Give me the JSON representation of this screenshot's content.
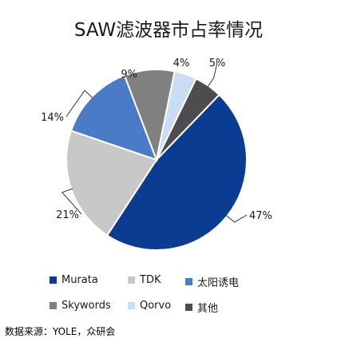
{
  "chart_data": {
    "type": "pie",
    "title": "SAW滤波器市占率情况",
    "slices": [
      {
        "label": "Murata",
        "value": 47,
        "value_label": "47%",
        "color": "#0a3d91"
      },
      {
        "label": "TDK",
        "value": 21,
        "value_label": "21%",
        "color": "#c8c8c8"
      },
      {
        "label": "太阳诱电",
        "value": 14,
        "value_label": "14%",
        "color": "#4a7bc8"
      },
      {
        "label": "Skywords",
        "value": 9,
        "value_label": "9%",
        "color": "#808080"
      },
      {
        "label": "Qorvo",
        "value": 4,
        "value_label": "4%",
        "color": "#c9ddf5"
      },
      {
        "label": "其他",
        "value": 5,
        "value_label": "5%",
        "color": "#4d4d4d"
      }
    ]
  },
  "source_note": "数据来源：YOLE，众研会"
}
